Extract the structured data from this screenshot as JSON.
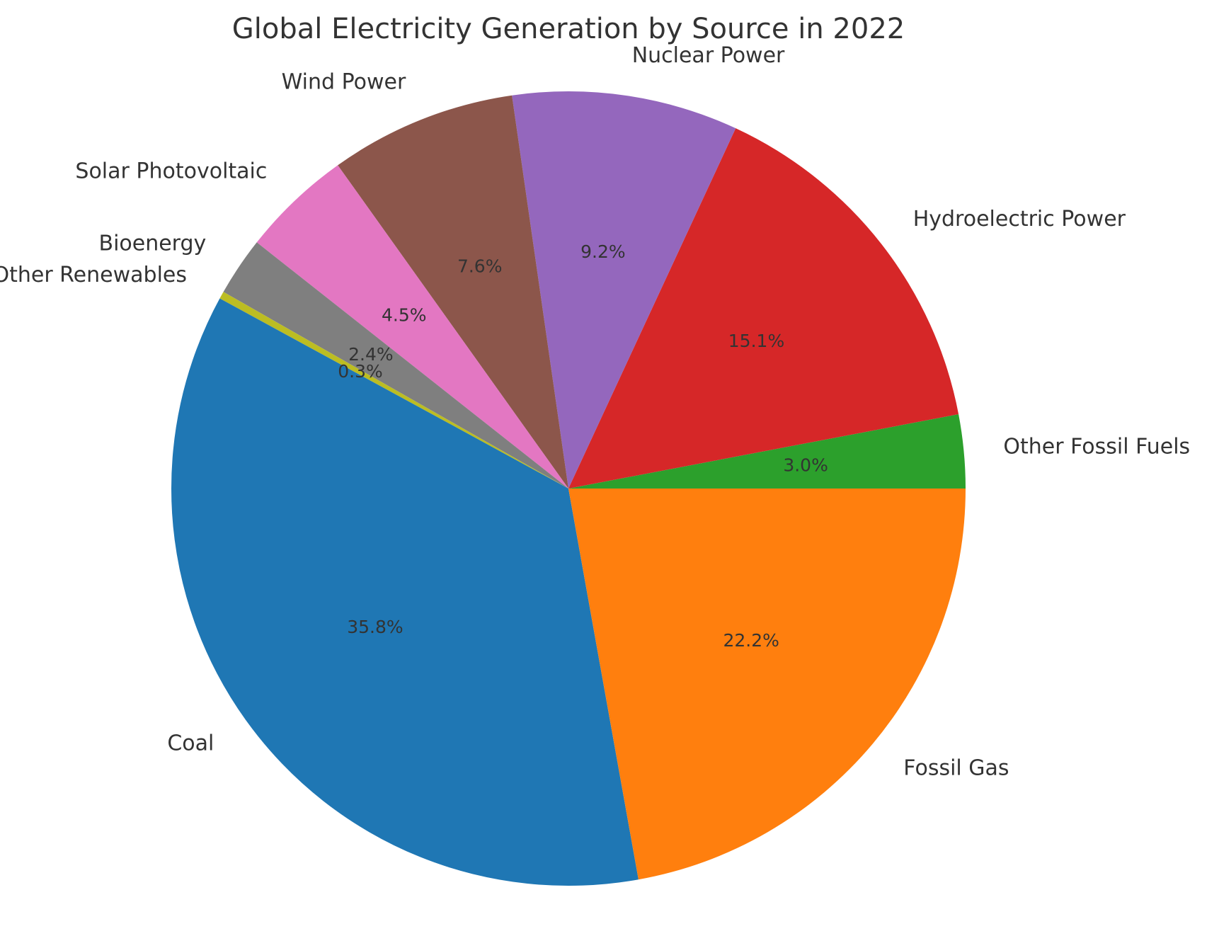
{
  "chart_data": {
    "type": "pie",
    "title": "Global Electricity Generation by Source in 2022",
    "start_angle_deg": 0,
    "direction": "counterclockwise",
    "slices": [
      {
        "label": "Other Fossil Fuels",
        "value": 3.0,
        "pct_label": "3.0%",
        "color": "#2ca02c"
      },
      {
        "label": "Hydroelectric Power",
        "value": 15.1,
        "pct_label": "15.1%",
        "color": "#d62728"
      },
      {
        "label": "Nuclear Power",
        "value": 9.2,
        "pct_label": "9.2%",
        "color": "#9467bd"
      },
      {
        "label": "Wind Power",
        "value": 7.6,
        "pct_label": "7.6%",
        "color": "#8c564b"
      },
      {
        "label": "Solar Photovoltaic",
        "value": 4.5,
        "pct_label": "4.5%",
        "color": "#e377c2"
      },
      {
        "label": "Bioenergy",
        "value": 2.4,
        "pct_label": "2.4%",
        "color": "#7f7f7f"
      },
      {
        "label": "Other Renewables",
        "value": 0.3,
        "pct_label": "0.3%",
        "color": "#bcbd22"
      },
      {
        "label": "Coal",
        "value": 35.8,
        "pct_label": "35.8%",
        "color": "#1f77b4"
      },
      {
        "label": "Fossil Gas",
        "value": 22.2,
        "pct_label": "22.2%",
        "color": "#ff7f0e"
      }
    ]
  }
}
